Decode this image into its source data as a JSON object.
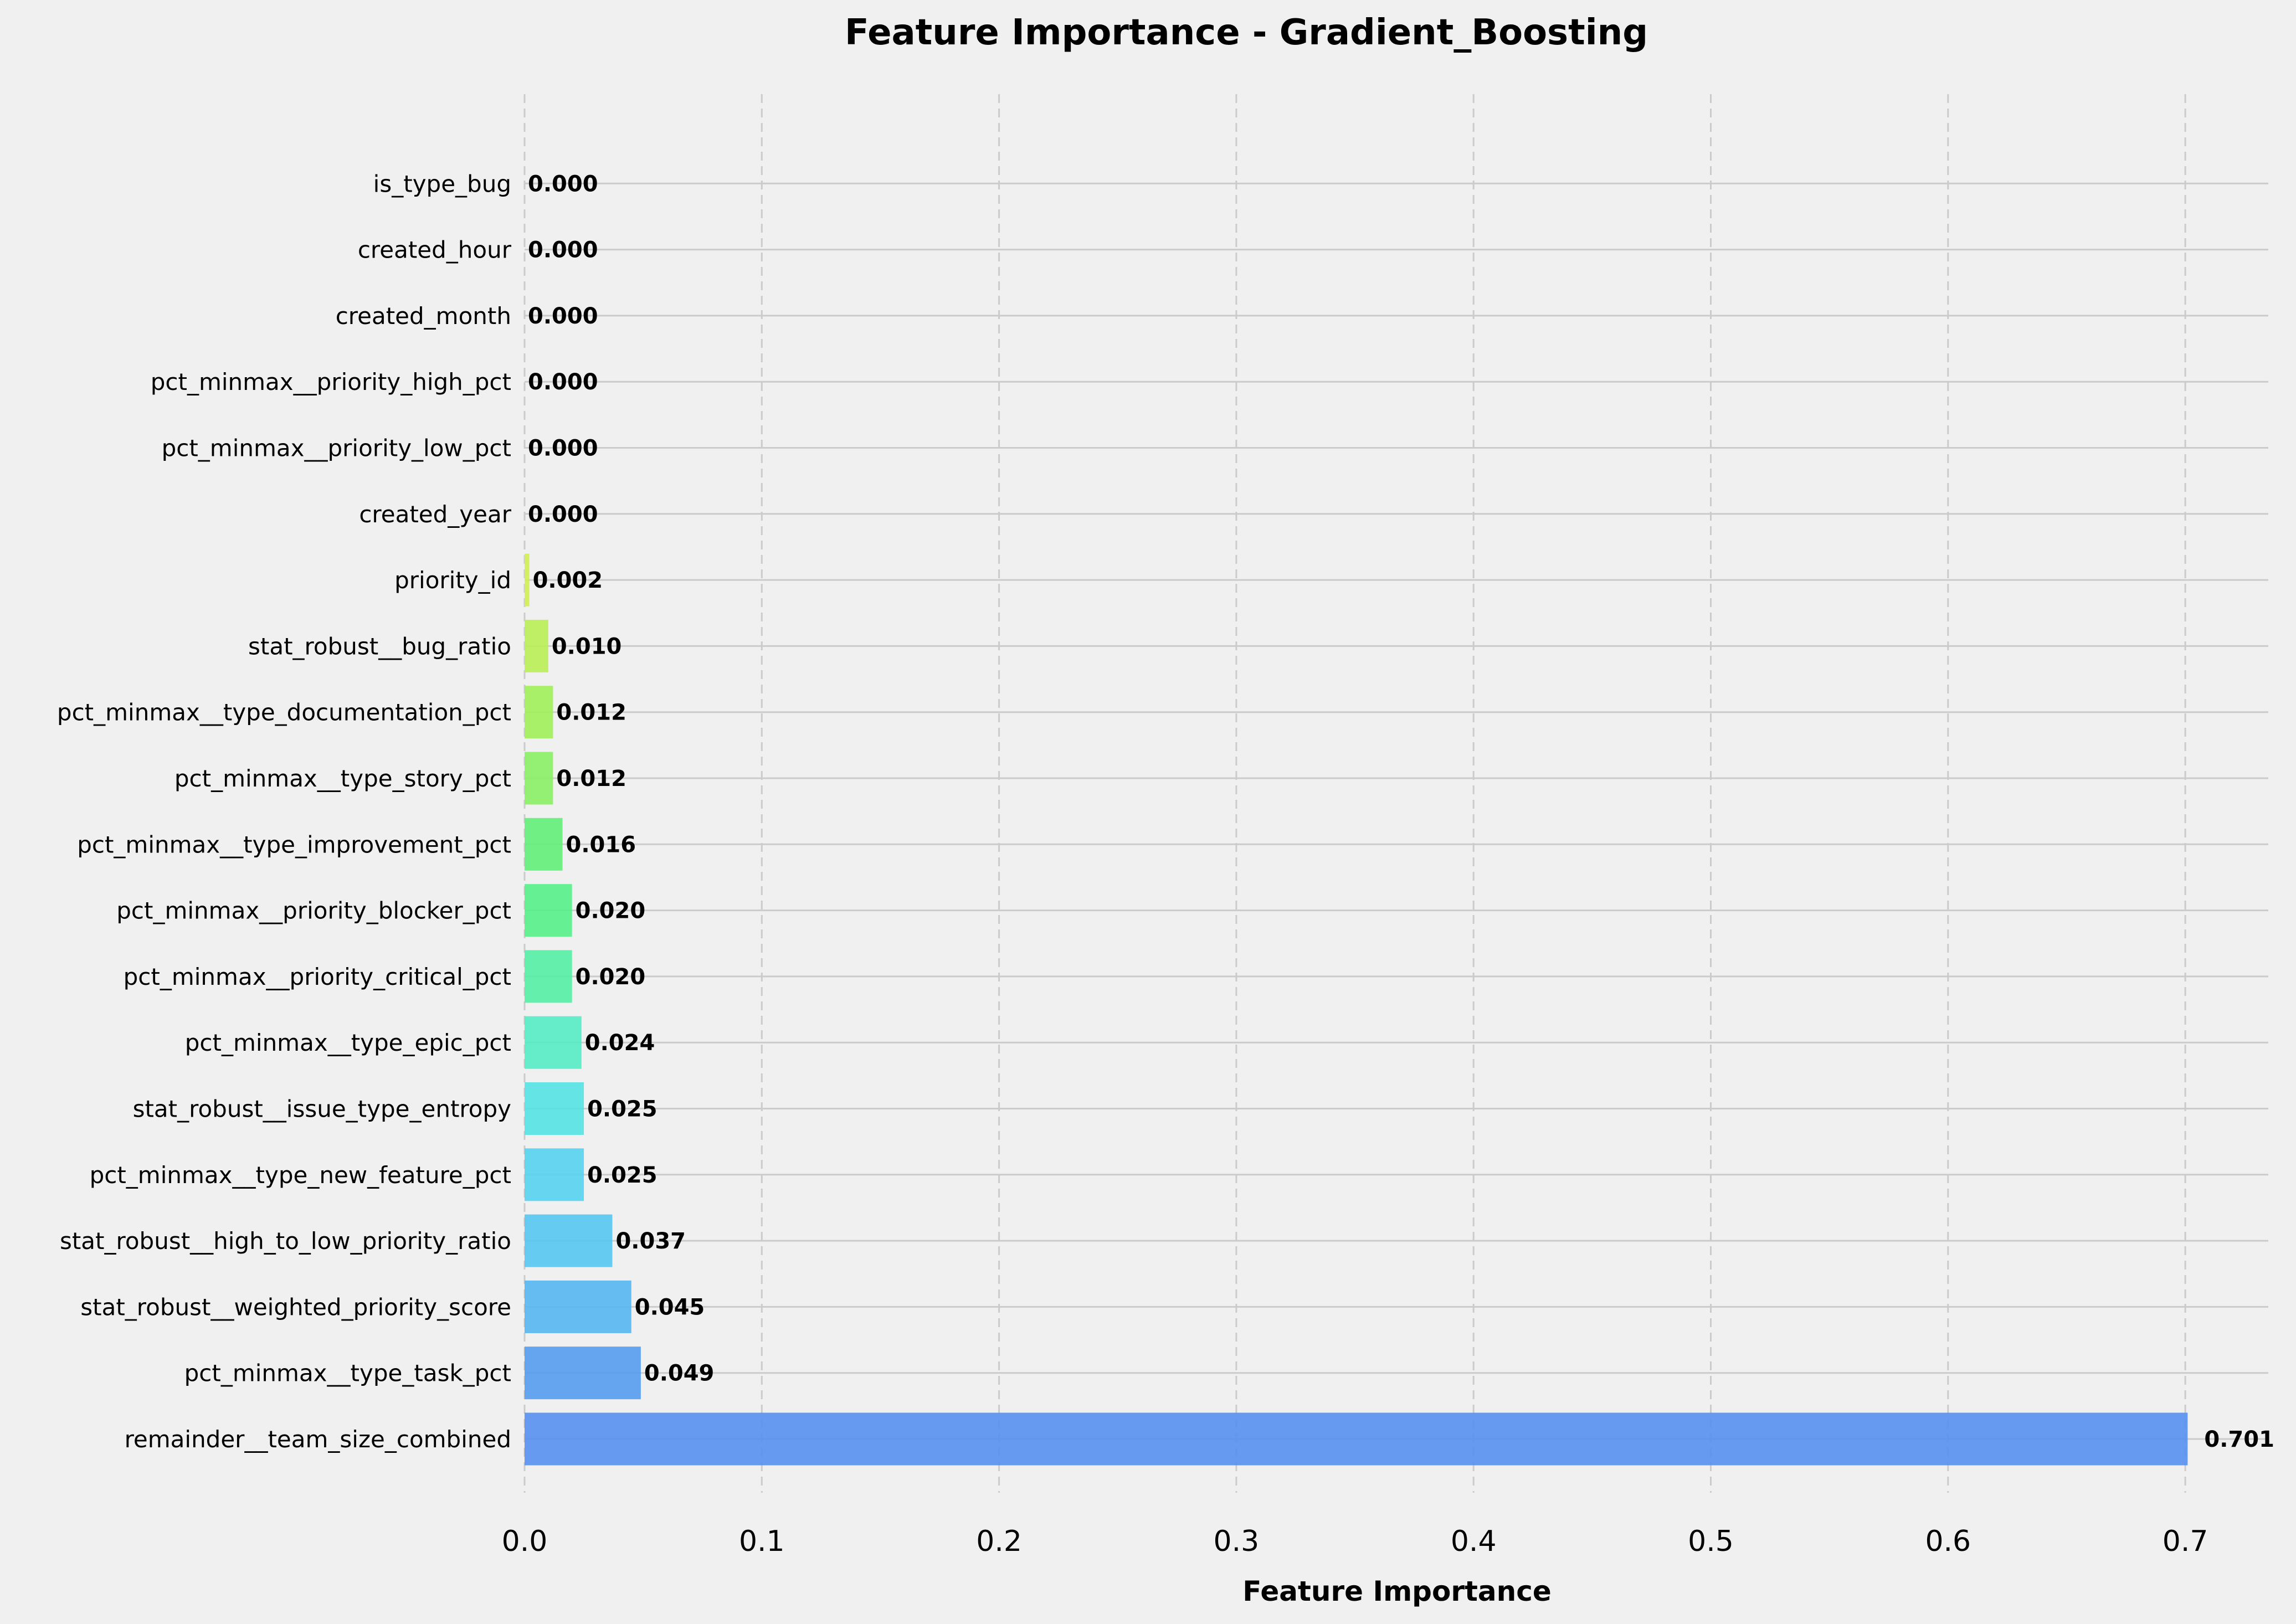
{
  "chart_data": {
    "type": "bar",
    "orientation": "horizontal",
    "title": "Feature Importance - Gradient_Boosting",
    "xlabel": "Feature Importance",
    "ylabel": "",
    "xlim": [
      0,
      0.735
    ],
    "xticks": [
      0.0,
      0.1,
      0.2,
      0.3,
      0.4,
      0.5,
      0.6,
      0.7
    ],
    "xtick_labels": [
      "0.0",
      "0.1",
      "0.2",
      "0.3",
      "0.4",
      "0.5",
      "0.6",
      "0.7"
    ],
    "grid": "x dashed, y solid",
    "categories": [
      "remainder__team_size_combined",
      "pct_minmax__type_task_pct",
      "stat_robust__weighted_priority_score",
      "stat_robust__high_to_low_priority_ratio",
      "pct_minmax__type_new_feature_pct",
      "stat_robust__issue_type_entropy",
      "pct_minmax__type_epic_pct",
      "pct_minmax__priority_critical_pct",
      "pct_minmax__priority_blocker_pct",
      "pct_minmax__type_improvement_pct",
      "pct_minmax__type_story_pct",
      "pct_minmax__type_documentation_pct",
      "stat_robust__bug_ratio",
      "priority_id",
      "created_year",
      "pct_minmax__priority_low_pct",
      "pct_minmax__priority_high_pct",
      "created_month",
      "created_hour",
      "is_type_bug"
    ],
    "values": [
      0.701,
      0.049,
      0.045,
      0.037,
      0.025,
      0.025,
      0.024,
      0.02,
      0.02,
      0.016,
      0.012,
      0.012,
      0.01,
      0.002,
      0.0,
      0.0,
      0.0,
      0.0,
      0.0,
      0.0
    ],
    "value_labels": [
      "0.701",
      "0.049",
      "0.045",
      "0.037",
      "0.025",
      "0.025",
      "0.024",
      "0.020",
      "0.020",
      "0.016",
      "0.012",
      "0.012",
      "0.010",
      "0.002",
      "0.000",
      "0.000",
      "0.000",
      "0.000",
      "0.000",
      "0.000"
    ],
    "colors": [
      "#5590ef",
      "#559cef",
      "#55b6ef",
      "#55c6ef",
      "#55d2ef",
      "#55e2e4",
      "#55ecc4",
      "#55eea4",
      "#55ef8a",
      "#62ef78",
      "#8aef64",
      "#a0ef58",
      "#b8ee55",
      "#d2ee55",
      "#d8ee55",
      "#dcee55",
      "#e0ee55",
      "#e4ee55",
      "#e8ee55",
      "#ecee55"
    ],
    "background": "#f0f0f0"
  }
}
